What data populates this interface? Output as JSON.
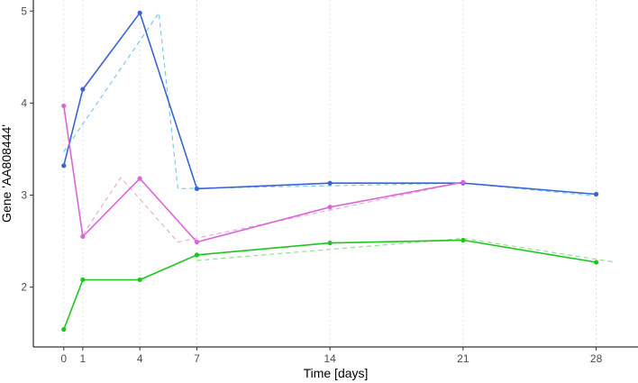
{
  "chart_data": {
    "type": "line",
    "title": "",
    "xlabel": "Time [days]",
    "ylabel": "Gene 'AA808444'",
    "xlim": [
      -1.6,
      30.2
    ],
    "ylim": [
      1.35,
      5.12
    ],
    "xticks": [
      0,
      1,
      4,
      7,
      14,
      21,
      28
    ],
    "yticks": [
      2,
      3,
      4,
      5
    ],
    "grid": "vertical dashed at x ticks",
    "legend": "none",
    "series": [
      {
        "style": "solid",
        "color": "#3a64d6",
        "x": [
          0,
          1,
          4,
          7,
          14,
          21,
          28
        ],
        "y": [
          3.32,
          4.15,
          4.98,
          3.07,
          3.13,
          3.13,
          3.01
        ]
      },
      {
        "style": "dashed",
        "color": "#7ec8ec",
        "x": [
          0,
          5,
          6,
          21,
          28
        ],
        "y": [
          3.47,
          4.98,
          3.07,
          3.13,
          2.99
        ]
      },
      {
        "style": "solid",
        "color": "#d966d6",
        "x": [
          0,
          1,
          4,
          7,
          14,
          21
        ],
        "y": [
          3.97,
          2.55,
          3.18,
          2.49,
          2.87,
          3.14
        ]
      },
      {
        "style": "dashed",
        "color": "#eeaad6",
        "x": [
          1,
          3,
          6,
          21
        ],
        "y": [
          2.57,
          3.19,
          2.49,
          3.14
        ]
      },
      {
        "style": "solid",
        "color": "#1ec51e",
        "x": [
          0,
          1,
          4,
          7,
          14,
          21,
          28
        ],
        "y": [
          1.54,
          2.08,
          2.08,
          2.35,
          2.48,
          2.51,
          2.27
        ]
      },
      {
        "style": "dashed",
        "color": "#8fe08f",
        "x": [
          7,
          21,
          29
        ],
        "y": [
          2.29,
          2.53,
          2.27
        ]
      }
    ]
  }
}
